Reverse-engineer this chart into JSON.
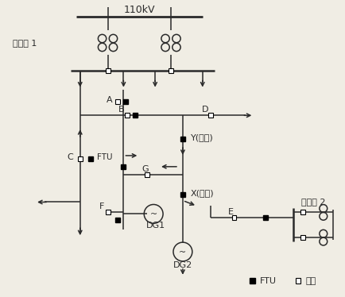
{
  "bg_color": "#f0ede4",
  "line_color": "#2a2a2a",
  "title_110kV": "110kV",
  "label_substation1": "变电站 1",
  "label_substation2": "变电站 2",
  "label_FTU": "FTU",
  "label_switch": "开关",
  "label_DG1": "DG1",
  "label_DG2": "DG2",
  "label_A": "A",
  "label_B": "B",
  "label_C": "C",
  "label_D": "D",
  "label_E": "E",
  "label_F": "F",
  "label_G": "G",
  "label_X": "X(常开)",
  "label_Y": "Y(常闭)"
}
